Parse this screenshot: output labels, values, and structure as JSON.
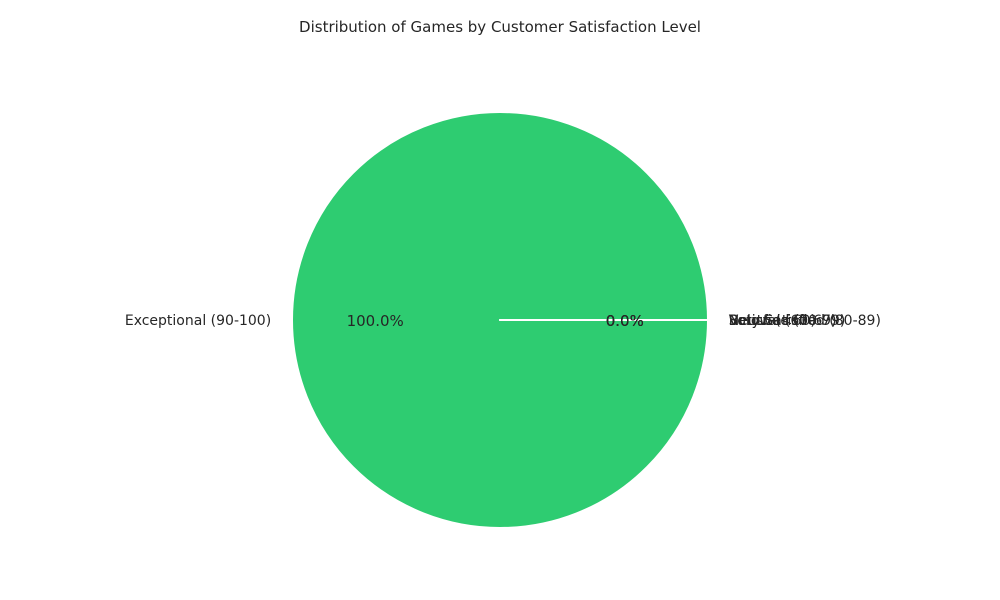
{
  "chart_data": {
    "type": "pie",
    "title": "Distribution of Games by Customer Satisfaction Level",
    "categories": [
      "Exceptional (90-100)",
      "Very Satisfied (80-89)",
      "Satisfied (70-79)",
      "Neutral (60-69)",
      "Below (<60)"
    ],
    "values": [
      100,
      0,
      0,
      0,
      0
    ],
    "percent_labels": [
      "100.0%",
      "0.0%",
      "0.0%",
      "0.0%",
      "0.0%"
    ],
    "colors": [
      "#2ecc71",
      "#3498db",
      "#f1c40f",
      "#e67e22",
      "#e74c3c"
    ],
    "start_angle_deg": 0,
    "legend": "none"
  }
}
